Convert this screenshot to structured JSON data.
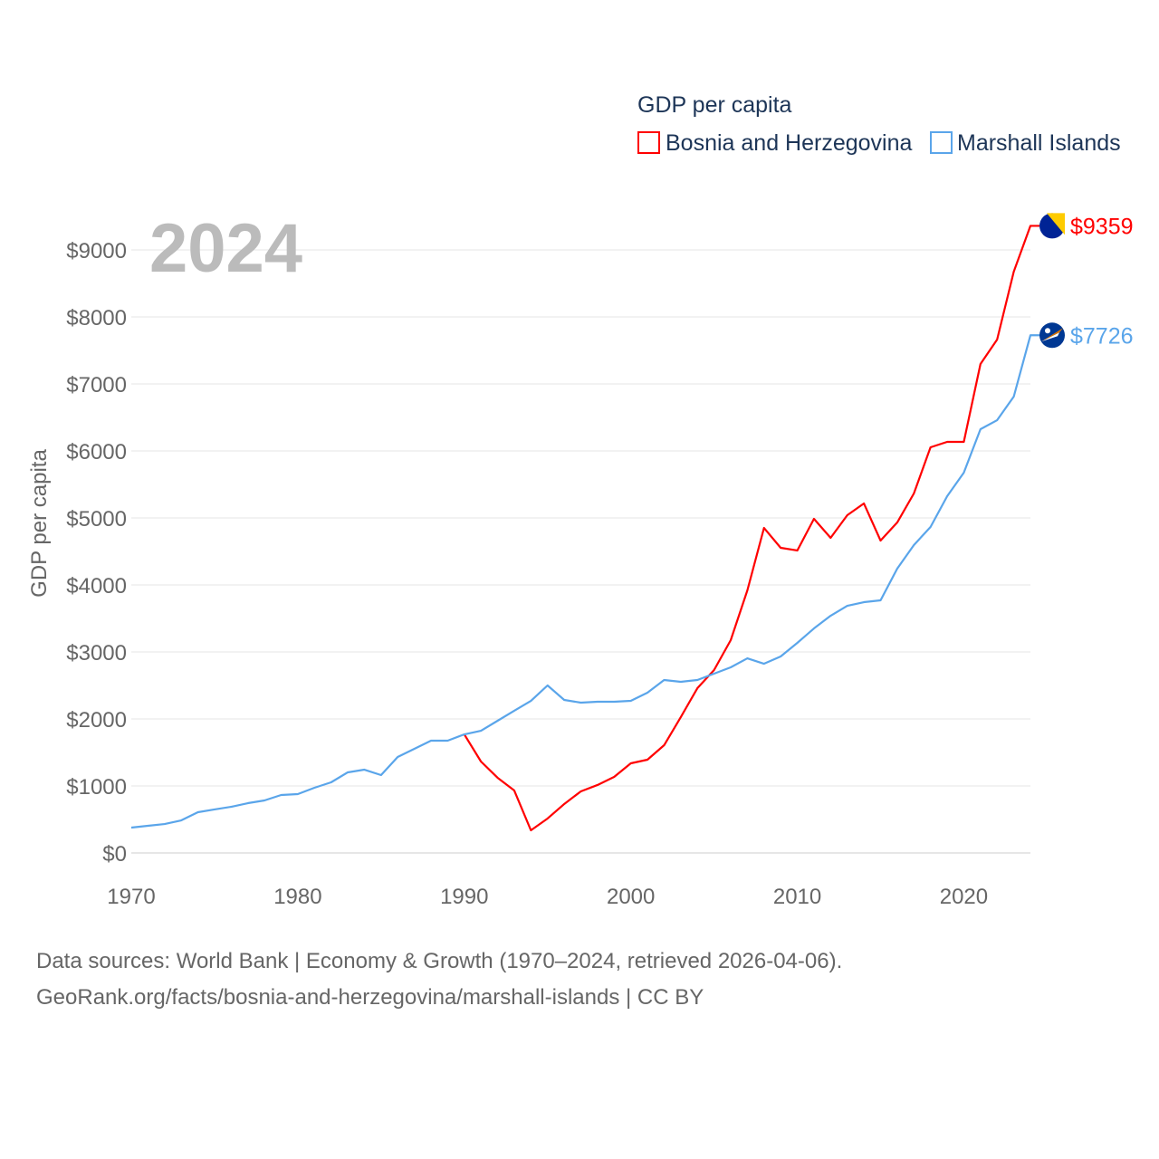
{
  "chart_data": {
    "type": "line",
    "legend_title": "GDP per capita",
    "year_label": "2024",
    "ylabel": "GDP per capita",
    "xlabel": "",
    "xlim": [
      1970,
      2024
    ],
    "ylim": [
      0,
      9000
    ],
    "x_ticks": [
      "1970",
      "1980",
      "1990",
      "2000",
      "2010",
      "2020"
    ],
    "y_ticks": [
      "$0",
      "$1000",
      "$2000",
      "$3000",
      "$4000",
      "$5000",
      "$6000",
      "$7000",
      "$8000",
      "$9000"
    ],
    "legend_placement": "top-right",
    "grid": true,
    "series": [
      {
        "name": "Bosnia and Herzegovina",
        "color": "#ff0000",
        "end_label": "$9359",
        "start_year": 1990,
        "values": [
          1770,
          1365,
          1122,
          932,
          338,
          514,
          730,
          919,
          1014,
          1135,
          1338,
          1392,
          1608,
          2027,
          2459,
          2730,
          3176,
          3919,
          4851,
          4554,
          4514,
          4986,
          4703,
          5041,
          5216,
          4662,
          4932,
          5365,
          6054,
          6135,
          6135,
          7297,
          7662,
          8676,
          9359
        ]
      },
      {
        "name": "Marshall Islands",
        "color": "#5aa5ea",
        "end_label": "$7726",
        "start_year": 1970,
        "values": [
          378,
          405,
          432,
          486,
          608,
          649,
          689,
          743,
          784,
          865,
          878,
          973,
          1054,
          1203,
          1243,
          1162,
          1432,
          1554,
          1676,
          1676,
          1770,
          1824,
          1973,
          2122,
          2270,
          2500,
          2284,
          2243,
          2257,
          2257,
          2270,
          2392,
          2581,
          2554,
          2581,
          2676,
          2770,
          2905,
          2824,
          2932,
          3135,
          3351,
          3540,
          3689,
          3743,
          3770,
          4243,
          4595,
          4865,
          5324,
          5676,
          6324,
          6459,
          6811,
          7726
        ]
      }
    ]
  },
  "source": {
    "line1": "Data sources: World Bank | Economy & Growth (1970–2024, retrieved 2026-04-06).",
    "line2": "GeoRank.org/facts/bosnia-and-herzegovina/marshall-islands | CC BY"
  }
}
